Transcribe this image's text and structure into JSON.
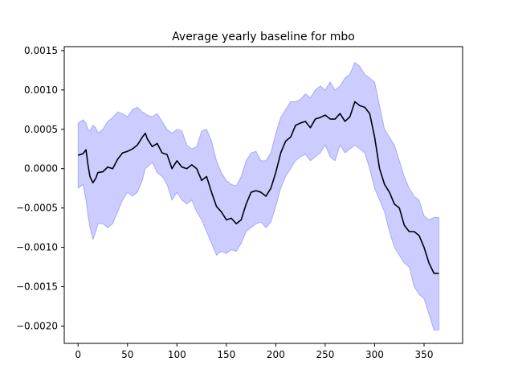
{
  "chart_data": {
    "type": "line",
    "title": "Average yearly baseline for mbo",
    "xlabel": "",
    "ylabel": "",
    "xlim": [
      -14,
      389
    ],
    "ylim": [
      -0.00222,
      0.00155
    ],
    "grid": false,
    "xticks": [
      0,
      50,
      100,
      150,
      200,
      250,
      300,
      350
    ],
    "xtick_labels": [
      "0",
      "50",
      "100",
      "150",
      "200",
      "250",
      "300",
      "350"
    ],
    "yticks": [
      0.0015,
      0.001,
      0.0005,
      0.0,
      -0.0005,
      -0.001,
      -0.0015,
      -0.002
    ],
    "ytick_labels": [
      "0.0015",
      "0.0010",
      "0.0005",
      "0.0000",
      "−0.0005",
      "−0.0010",
      "−0.0015",
      "−0.0020"
    ],
    "colors": {
      "line": "#000000",
      "band": "#0000ff",
      "band_alpha": 0.2
    },
    "series": [
      {
        "kind": "mean-line",
        "x": [
          0,
          5,
          8,
          10,
          12,
          15,
          18,
          20,
          25,
          30,
          35,
          40,
          45,
          50,
          55,
          60,
          65,
          68,
          70,
          75,
          80,
          85,
          90,
          95,
          100,
          105,
          110,
          115,
          120,
          125,
          130,
          135,
          140,
          145,
          150,
          155,
          160,
          165,
          170,
          175,
          180,
          185,
          190,
          195,
          200,
          205,
          210,
          215,
          220,
          225,
          230,
          235,
          240,
          245,
          250,
          255,
          260,
          265,
          270,
          275,
          280,
          285,
          290,
          295,
          300,
          305,
          310,
          315,
          320,
          325,
          330,
          335,
          340,
          345,
          350,
          355,
          360,
          365
        ],
        "y": [
          0.00017,
          0.00019,
          0.00024,
          5e-05,
          -0.0001,
          -0.00018,
          -0.00012,
          -5e-05,
          -4e-05,
          2e-05,
          0.0,
          0.00012,
          0.0002,
          0.00022,
          0.00025,
          0.0003,
          0.0004,
          0.00045,
          0.00038,
          0.00028,
          0.00032,
          0.0002,
          0.00018,
          0.0,
          0.0001,
          2e-05,
          0.0,
          5e-05,
          0.0,
          -0.00015,
          -0.0001,
          -0.0003,
          -0.00048,
          -0.00055,
          -0.00065,
          -0.00063,
          -0.0007,
          -0.00065,
          -0.00045,
          -0.0003,
          -0.00028,
          -0.0003,
          -0.00035,
          -0.00025,
          -5e-05,
          0.0002,
          0.00035,
          0.0004,
          0.00055,
          0.00058,
          0.0006,
          0.00052,
          0.00063,
          0.00065,
          0.00068,
          0.00063,
          0.00063,
          0.0007,
          0.0006,
          0.00066,
          0.00085,
          0.0008,
          0.00078,
          0.0007,
          0.0004,
          0.0,
          -0.0002,
          -0.0003,
          -0.00045,
          -0.0005,
          -0.00072,
          -0.0008,
          -0.0008,
          -0.00085,
          -0.001,
          -0.0012,
          -0.00133,
          -0.00133
        ]
      },
      {
        "kind": "band",
        "x": [
          0,
          5,
          8,
          10,
          12,
          15,
          18,
          20,
          25,
          30,
          35,
          40,
          45,
          50,
          55,
          60,
          65,
          68,
          70,
          75,
          80,
          85,
          90,
          95,
          100,
          105,
          110,
          115,
          120,
          125,
          130,
          135,
          140,
          145,
          150,
          155,
          160,
          165,
          170,
          175,
          180,
          185,
          190,
          195,
          200,
          205,
          210,
          215,
          220,
          225,
          230,
          235,
          240,
          245,
          250,
          255,
          260,
          265,
          270,
          275,
          280,
          285,
          290,
          295,
          300,
          305,
          310,
          315,
          320,
          325,
          330,
          335,
          340,
          345,
          350,
          355,
          360,
          365
        ],
        "upper": [
          0.00058,
          0.00062,
          0.00058,
          0.0005,
          0.00048,
          0.00055,
          0.00052,
          0.00045,
          0.0005,
          0.0006,
          0.00065,
          0.00072,
          0.0007,
          0.00066,
          0.00075,
          0.00078,
          0.00072,
          0.0007,
          0.00068,
          0.00066,
          0.0007,
          0.0006,
          0.0005,
          0.00045,
          0.0005,
          0.00048,
          0.0003,
          0.00025,
          0.00028,
          0.00048,
          0.0005,
          0.00035,
          0.0001,
          -5e-05,
          -0.00015,
          -0.0002,
          -0.00022,
          -0.0001,
          0.0001,
          0.0002,
          0.00022,
          0.0001,
          0.0001,
          0.0002,
          0.00045,
          0.00065,
          0.00075,
          0.00085,
          0.00085,
          0.00088,
          0.00095,
          0.0009,
          0.001,
          0.00105,
          0.001,
          0.0011,
          0.001,
          0.00105,
          0.00115,
          0.0012,
          0.00135,
          0.0013,
          0.0012,
          0.00115,
          0.0011,
          0.0008,
          0.0005,
          0.0004,
          0.0003,
          0.0001,
          -0.0001,
          -0.00025,
          -0.00035,
          -0.0004,
          -0.0006,
          -0.00065,
          -0.00062,
          -0.00062
        ],
        "lower": [
          -0.00025,
          -0.0002,
          -0.0004,
          -0.0006,
          -0.00075,
          -0.0009,
          -0.0008,
          -0.0007,
          -0.0007,
          -0.00075,
          -0.0007,
          -0.00055,
          -0.0004,
          -0.0003,
          -0.00035,
          -0.0003,
          -0.00015,
          0.0,
          2e-05,
          8e-05,
          -5e-05,
          -0.0001,
          -0.0002,
          -0.0004,
          -0.0003,
          -0.0004,
          -0.00045,
          -0.0004,
          -0.00055,
          -0.00065,
          -0.0008,
          -0.00095,
          -0.0011,
          -0.00105,
          -0.00108,
          -0.00103,
          -0.00105,
          -0.00095,
          -0.0008,
          -0.00075,
          -0.0007,
          -0.00068,
          -0.00075,
          -0.00068,
          -0.00048,
          -0.00025,
          -0.0001,
          0.0,
          0.0001,
          0.00015,
          0.00018,
          0.0001,
          0.00015,
          0.0002,
          0.0003,
          0.00015,
          0.0001,
          0.0003,
          0.0002,
          0.00025,
          0.0003,
          0.00025,
          0.0002,
          0.0,
          -0.00025,
          -0.0004,
          -0.00055,
          -0.0008,
          -0.001,
          -0.0011,
          -0.0012,
          -0.00125,
          -0.0015,
          -0.0016,
          -0.00165,
          -0.00185,
          -0.00205,
          -0.00205
        ]
      }
    ]
  }
}
